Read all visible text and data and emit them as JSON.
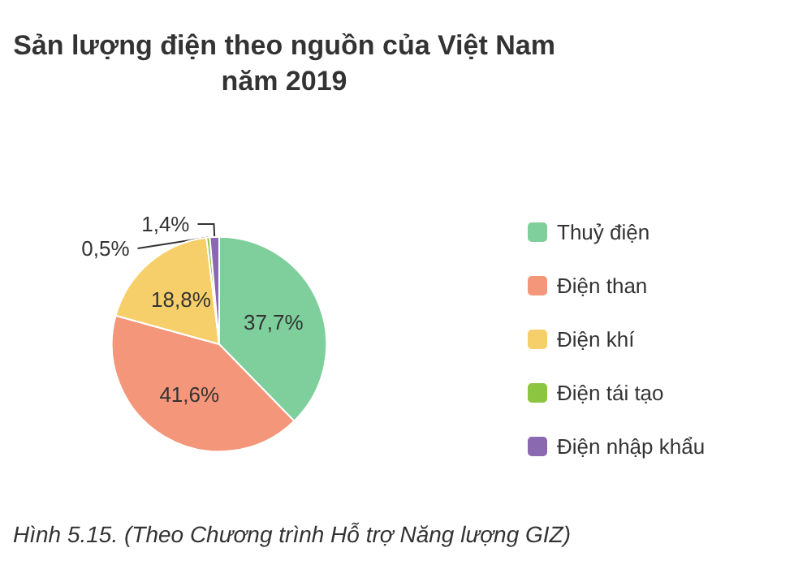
{
  "chart_data": {
    "type": "pie",
    "title": "Sản lượng điện theo nguồn của Việt Nam\nnăm 2019",
    "categories": [
      "Thuỷ điện",
      "Điện than",
      "Điện khí",
      "Điện tái tạo",
      "Điện nhập khẩu"
    ],
    "values": [
      37.7,
      41.6,
      18.8,
      0.5,
      1.4
    ],
    "value_labels": [
      "37,7%",
      "41,6%",
      "18,8%",
      "0,5%",
      "1,4%"
    ],
    "colors": [
      "#7fcf9c",
      "#f4967a",
      "#f6cf6b",
      "#8cc540",
      "#8a69b0"
    ],
    "legend": "right",
    "annotations": [
      "Hình 5.15. (Theo Chương trình Hỗ trợ Năng lượng GIZ)"
    ]
  }
}
